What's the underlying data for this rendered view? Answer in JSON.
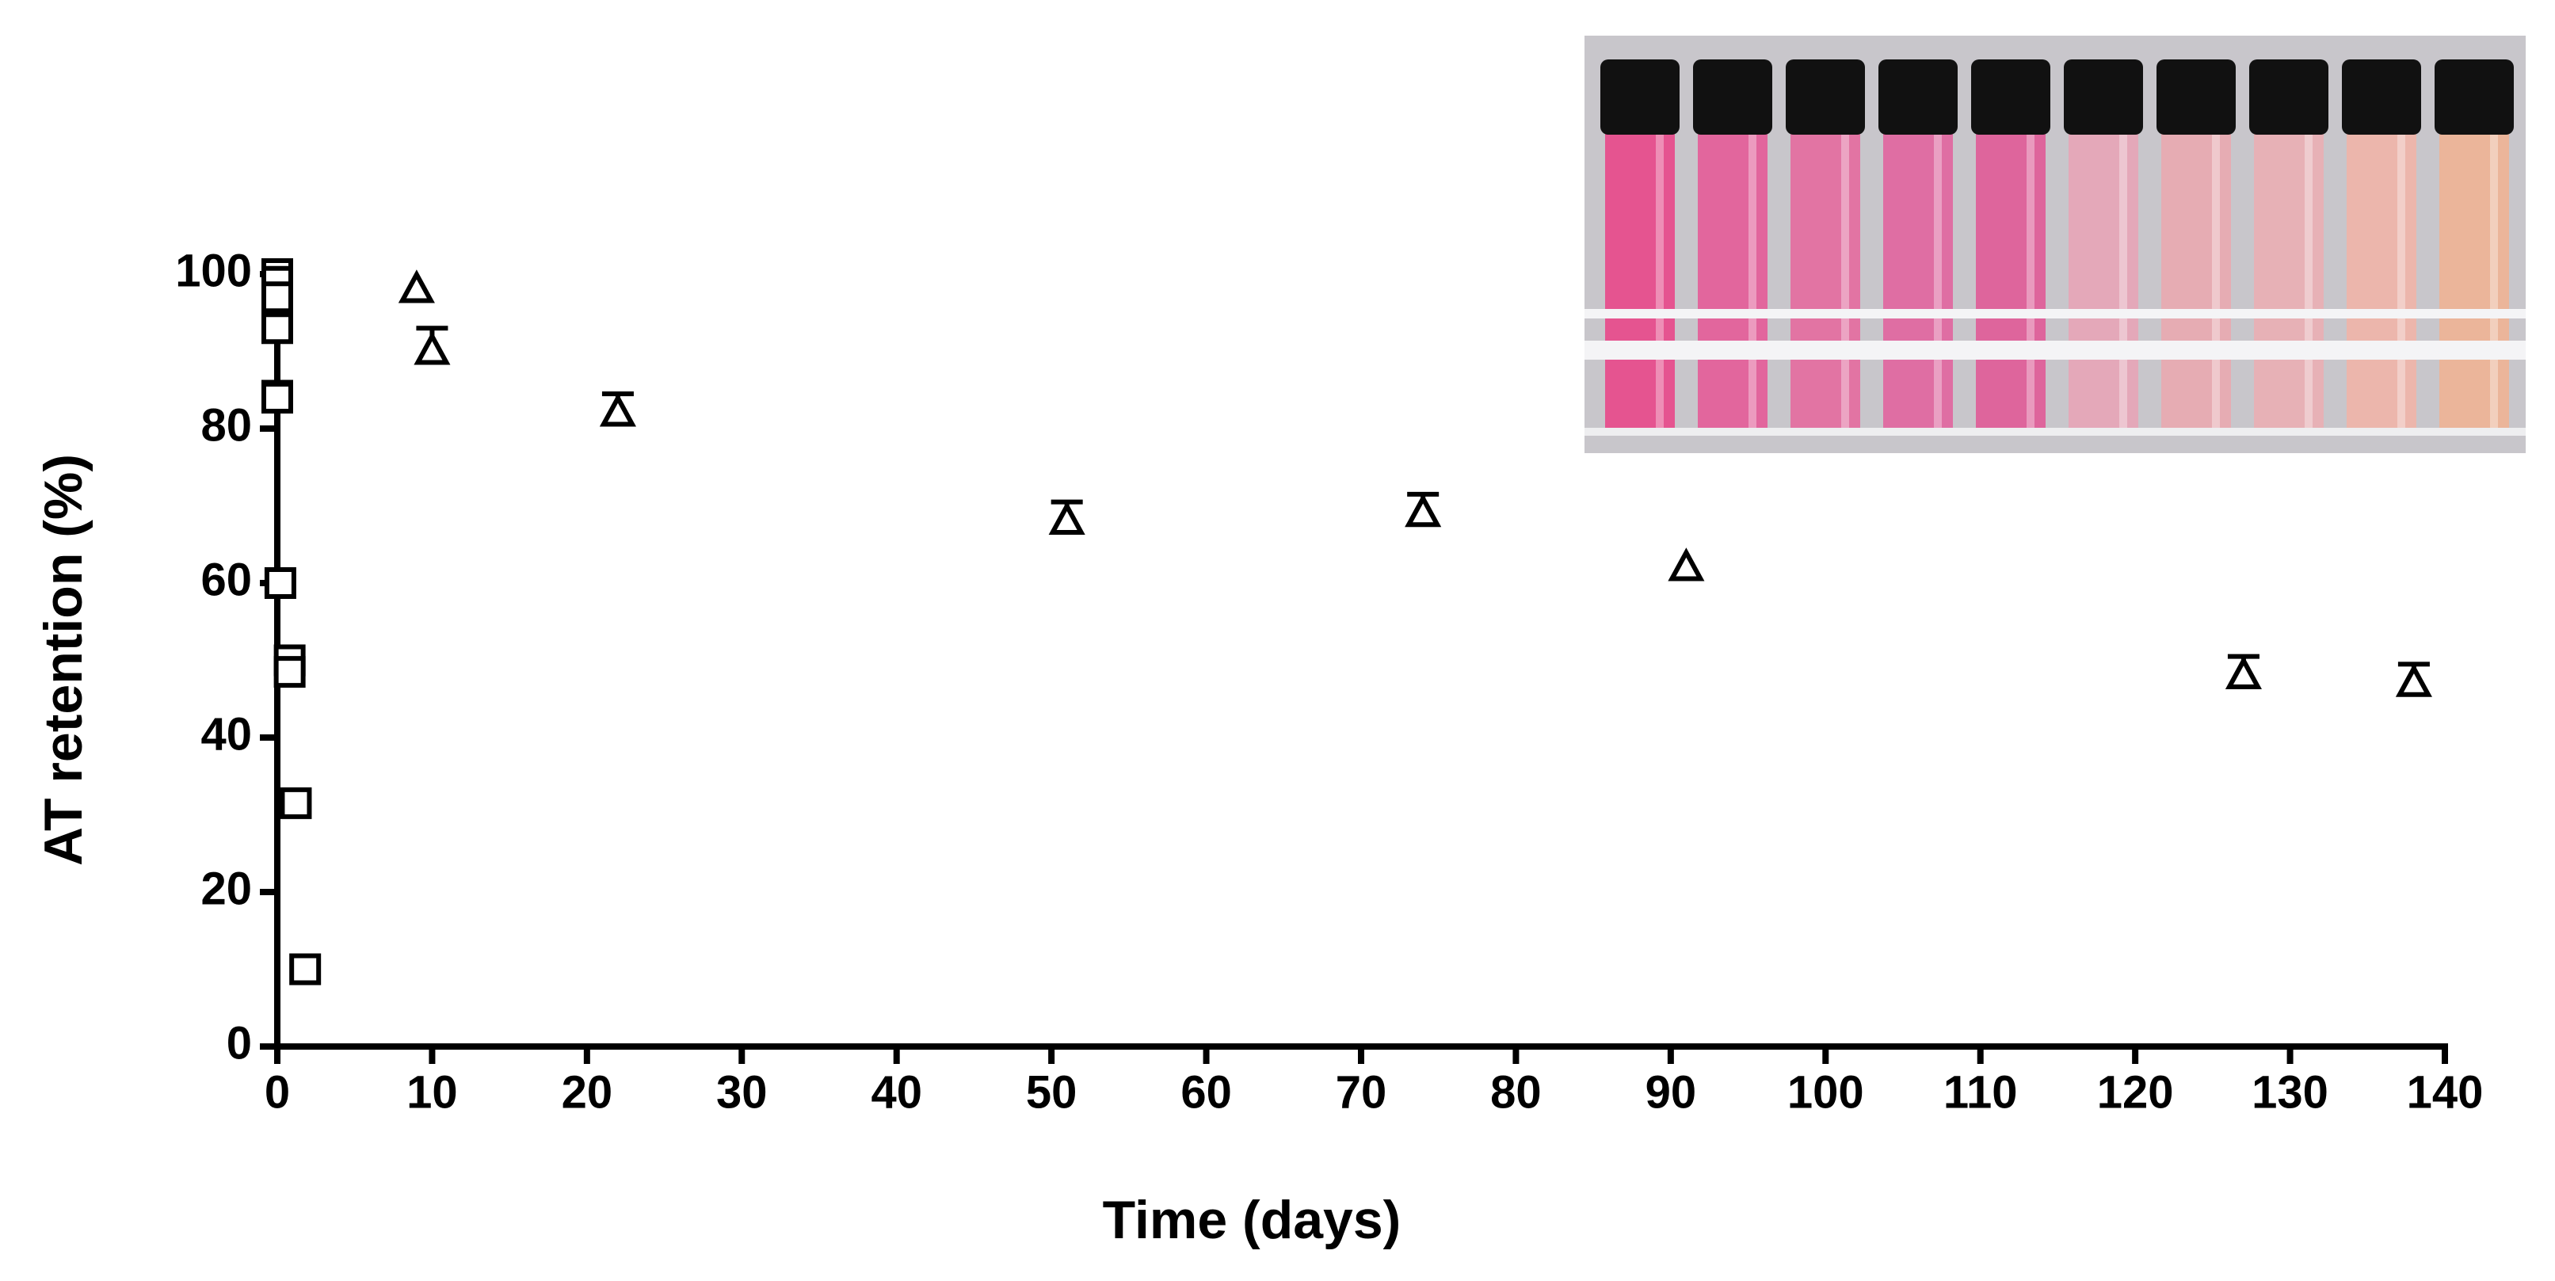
{
  "chart_data": {
    "type": "scatter",
    "xlabel": "Time (days)",
    "ylabel": "AT retention (%)",
    "xlim": [
      0,
      140
    ],
    "ylim": [
      0,
      100
    ],
    "xticks": [
      0,
      10,
      20,
      30,
      40,
      50,
      60,
      70,
      80,
      90,
      100,
      110,
      120,
      130,
      140
    ],
    "yticks": [
      0,
      20,
      40,
      60,
      80,
      100
    ],
    "series": [
      {
        "marker": "square",
        "color": "#000000",
        "x": [
          0,
          0,
          0,
          0,
          0,
          0.2,
          0.8,
          0.8,
          1.2,
          1.8
        ],
        "values": [
          100,
          99,
          97,
          93,
          84,
          60,
          50,
          48.5,
          31.5,
          10
        ],
        "errors": [
          null,
          null,
          null,
          null,
          2,
          null,
          null,
          null,
          null,
          null
        ]
      },
      {
        "marker": "triangle",
        "color": "#000000",
        "x": [
          9,
          10,
          22,
          51,
          74,
          91,
          127,
          138
        ],
        "values": [
          98,
          90,
          82,
          68,
          69,
          62,
          48,
          47
        ],
        "errors": [
          null,
          3,
          2.5,
          2.5,
          2.5,
          null,
          2.5,
          2.5
        ]
      }
    ]
  }
}
